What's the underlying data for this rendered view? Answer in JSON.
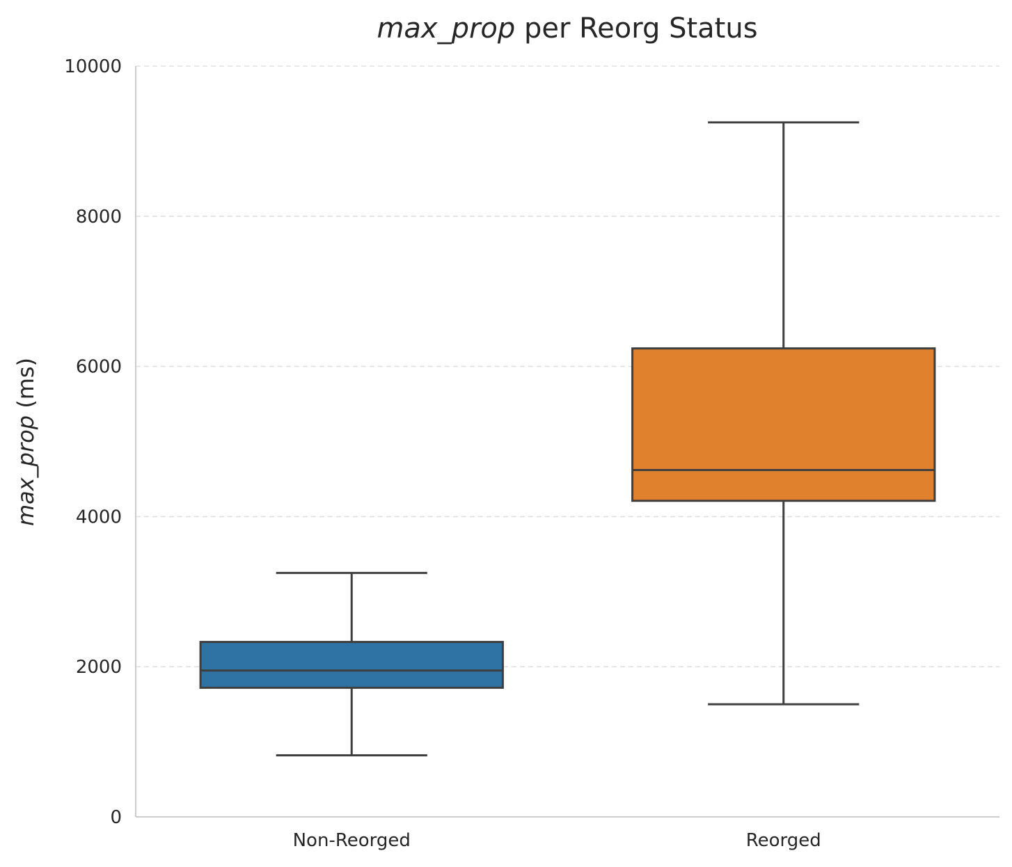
{
  "chart_data": {
    "type": "box",
    "title_parts": {
      "italic": "max_prop",
      "rest": " per Reorg Status"
    },
    "ylabel_parts": {
      "italic": "max_prop",
      "rest": " (ms)"
    },
    "xlabel": "",
    "categories": [
      "Non-Reorged",
      "Reorged"
    ],
    "ylim": [
      0,
      10000
    ],
    "yticks": [
      0,
      2000,
      4000,
      6000,
      8000,
      10000
    ],
    "grid": "y-dashed",
    "colors": [
      "#2e73a3",
      "#e0812e"
    ],
    "boxes": [
      {
        "category": "Non-Reorged",
        "whisker_low": 820,
        "q1": 1720,
        "median": 1950,
        "q3": 2330,
        "whisker_high": 3250
      },
      {
        "category": "Reorged",
        "whisker_low": 1500,
        "q1": 4210,
        "median": 4620,
        "q3": 6240,
        "whisker_high": 9250
      }
    ]
  }
}
